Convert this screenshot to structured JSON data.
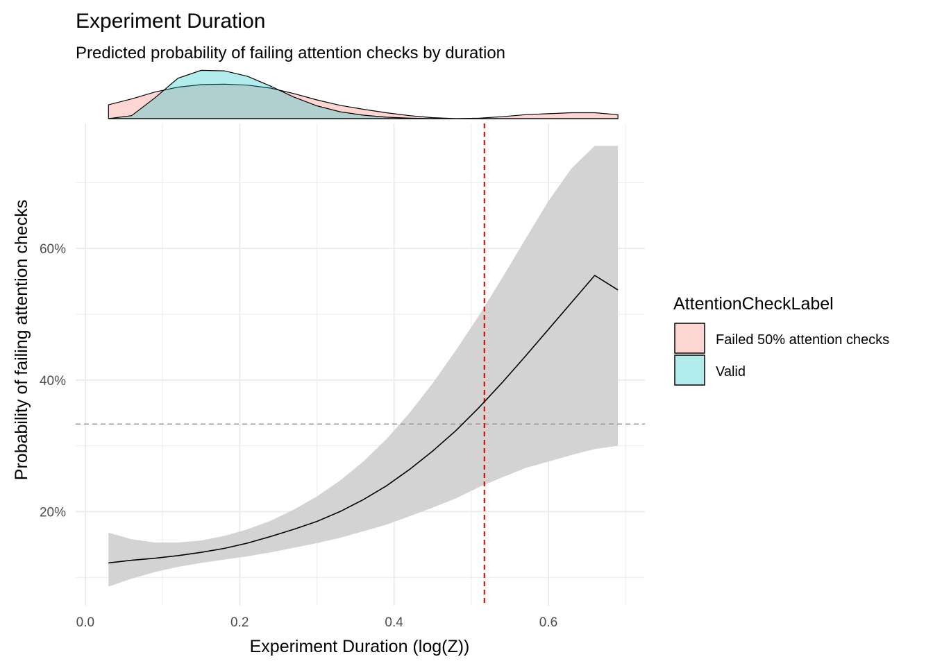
{
  "title": "Experiment Duration",
  "subtitle": "Predicted probability of failing attention checks by duration",
  "colors": {
    "failed_fill": "#F8766D",
    "valid_fill": "#00BFC4",
    "ribbon": "#d3d3d3",
    "threshold_vline": "#cc0000",
    "threshold_hline": "#999999",
    "grid": "#ebebeb"
  },
  "chart_data": [
    {
      "type": "area",
      "role": "marginal density (top)",
      "x": [
        0.03,
        0.06,
        0.09,
        0.12,
        0.15,
        0.18,
        0.21,
        0.24,
        0.27,
        0.3,
        0.33,
        0.36,
        0.39,
        0.42,
        0.45,
        0.48,
        0.51,
        0.54,
        0.57,
        0.6,
        0.63,
        0.66,
        0.69
      ],
      "series": [
        {
          "name": "Failed 50% attention checks",
          "values": [
            0.28,
            0.4,
            0.54,
            0.64,
            0.69,
            0.7,
            0.68,
            0.62,
            0.51,
            0.38,
            0.27,
            0.19,
            0.12,
            0.06,
            0.02,
            0.0,
            0.01,
            0.04,
            0.08,
            0.1,
            0.12,
            0.12,
            0.08
          ]
        },
        {
          "name": "Valid",
          "values": [
            0.0,
            0.06,
            0.42,
            0.82,
            0.98,
            0.97,
            0.86,
            0.66,
            0.44,
            0.26,
            0.14,
            0.07,
            0.03,
            0.01,
            0.0,
            0.0,
            0.0,
            0.0,
            0.0,
            0.0,
            0.0,
            0.0,
            0.0
          ]
        }
      ]
    },
    {
      "type": "line",
      "role": "predicted probability with confidence ribbon",
      "xlabel": "Experiment Duration (log(Z))",
      "ylabel": "Probability of failing attention checks",
      "x": [
        0.03,
        0.06,
        0.09,
        0.12,
        0.15,
        0.18,
        0.21,
        0.24,
        0.27,
        0.3,
        0.33,
        0.36,
        0.39,
        0.42,
        0.45,
        0.48,
        0.51,
        0.54,
        0.57,
        0.6,
        0.63,
        0.66,
        0.69
      ],
      "y": [
        12.2,
        12.6,
        12.9,
        13.3,
        13.8,
        14.4,
        15.2,
        16.2,
        17.3,
        18.5,
        20.0,
        21.8,
        23.9,
        26.4,
        29.2,
        32.3,
        35.8,
        39.6,
        43.6,
        47.7,
        51.8,
        55.9,
        53.7
      ],
      "ymin": [
        8.6,
        9.8,
        10.8,
        11.6,
        12.2,
        12.7,
        13.2,
        13.8,
        14.5,
        15.2,
        16.0,
        17.0,
        18.0,
        19.3,
        20.6,
        22.0,
        23.7,
        25.2,
        26.6,
        27.6,
        28.6,
        29.5,
        30.0
      ],
      "ymax": [
        16.8,
        15.8,
        15.3,
        15.3,
        15.6,
        16.3,
        17.3,
        18.6,
        20.3,
        22.3,
        24.7,
        27.6,
        31.0,
        35.0,
        39.5,
        44.5,
        49.8,
        55.5,
        61.4,
        67.2,
        72.2,
        75.6,
        75.6
      ],
      "xlim": [
        -0.0125,
        0.725
      ],
      "ylim": [
        5.7,
        79.0
      ],
      "x_ticks": [
        0.0,
        0.2,
        0.4,
        0.6
      ],
      "x_tick_labels": [
        "0.0",
        "0.2",
        "0.4",
        "0.6"
      ],
      "y_ticks": [
        20,
        40,
        60
      ],
      "y_tick_labels": [
        "20%",
        "40%",
        "60%"
      ],
      "threshold_x": 0.517,
      "threshold_y": 33.3,
      "grid": true
    }
  ],
  "legend": {
    "title": "AttentionCheckLabel",
    "placement": "right",
    "items": [
      {
        "label": "Failed 50% attention checks",
        "color": "#F8766D"
      },
      {
        "label": "Valid",
        "color": "#00BFC4"
      }
    ]
  }
}
